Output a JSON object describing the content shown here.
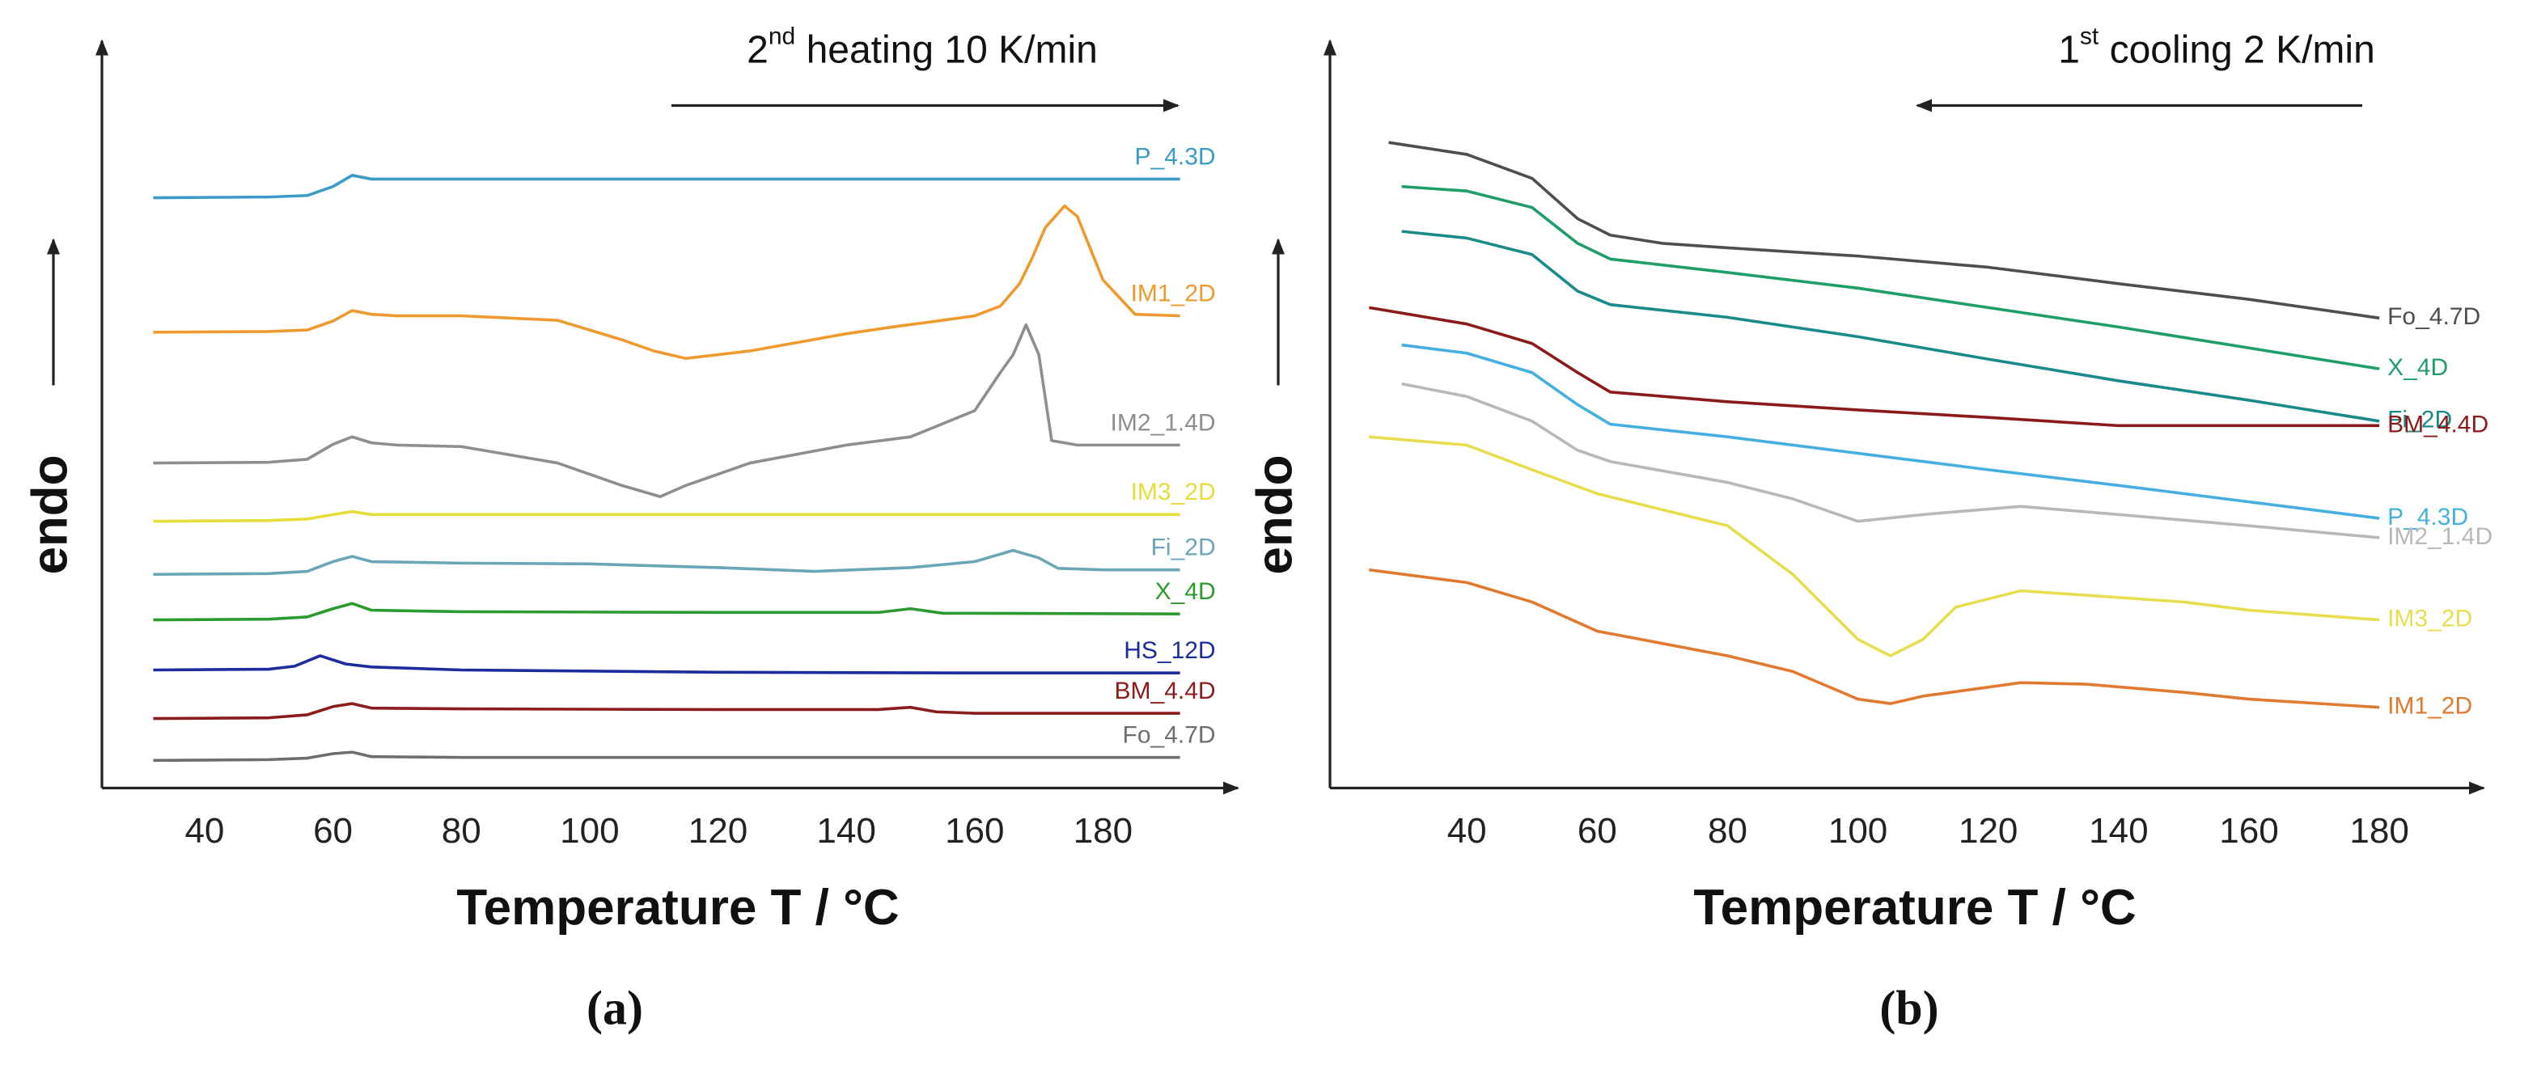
{
  "chart_data": [
    {
      "type": "line",
      "panel_label": "(a)",
      "annotation": {
        "base": "2",
        "sup": "nd",
        "rest": " heating 10 K/min"
      },
      "direction": "right",
      "xlabel": "Temperature T / °C",
      "ylabel": "endo",
      "labels": "above",
      "xlim": [
        24,
        201
      ],
      "xticks": [
        40,
        60,
        80,
        100,
        120,
        140,
        160,
        180
      ],
      "ylim": [
        0,
        100
      ],
      "series": [
        {
          "name": "P_4.3D",
          "color": "#3a9cc6",
          "x": [
            32,
            50,
            56,
            60,
            63,
            66,
            80,
            120,
            160,
            192
          ],
          "values": [
            79,
            79.1,
            79.3,
            80.5,
            82,
            81.5,
            81.5,
            81.5,
            81.5,
            81.5
          ]
        },
        {
          "name": "IM1_2D",
          "color": "#ee9a2e",
          "x": [
            32,
            50,
            56,
            60,
            63,
            66,
            70,
            80,
            95,
            105,
            110,
            115,
            125,
            140,
            148,
            155,
            160,
            164,
            167,
            169,
            171,
            174,
            176,
            180,
            185,
            192
          ],
          "values": [
            61,
            61.1,
            61.3,
            62.5,
            63.9,
            63.4,
            63.2,
            63.2,
            62.6,
            60,
            58.5,
            57.5,
            58.5,
            60.8,
            61.8,
            62.6,
            63.2,
            64.5,
            67.5,
            71,
            75,
            77.9,
            76.5,
            68,
            63.4,
            63.2
          ]
        },
        {
          "name": "IM2_1.4D",
          "color": "#8e8e8e",
          "x": [
            32,
            50,
            56,
            60,
            63,
            66,
            70,
            80,
            95,
            105,
            111,
            115,
            125,
            140,
            150,
            160,
            164,
            166,
            168,
            170,
            172,
            176,
            185,
            192
          ],
          "values": [
            43.5,
            43.6,
            44,
            46,
            47,
            46.2,
            45.9,
            45.7,
            43.5,
            40.5,
            39,
            40.5,
            43.5,
            45.9,
            47,
            50.5,
            55.6,
            58,
            62,
            58,
            46.5,
            45.9,
            45.9,
            45.9
          ]
        },
        {
          "name": "IM3_2D",
          "color": "#e6dc3a",
          "x": [
            32,
            50,
            56,
            60,
            63,
            66,
            80,
            120,
            160,
            192
          ],
          "values": [
            35.7,
            35.8,
            36,
            36.6,
            37,
            36.6,
            36.6,
            36.6,
            36.6,
            36.6
          ]
        },
        {
          "name": "Fi_2D",
          "color": "#6aa6b6",
          "x": [
            32,
            50,
            56,
            60,
            63,
            66,
            80,
            100,
            120,
            135,
            150,
            160,
            166,
            170,
            173,
            180,
            192
          ],
          "values": [
            28.6,
            28.7,
            29,
            30.3,
            31,
            30.3,
            30.1,
            30,
            29.5,
            29,
            29.5,
            30.3,
            31.8,
            30.8,
            29.4,
            29.2,
            29.2
          ]
        },
        {
          "name": "X_4D",
          "color": "#2b9a2f",
          "x": [
            32,
            50,
            56,
            60,
            63,
            66,
            80,
            120,
            145,
            150,
            155,
            192
          ],
          "values": [
            22.5,
            22.6,
            22.9,
            24,
            24.7,
            23.8,
            23.6,
            23.5,
            23.5,
            24,
            23.4,
            23.3
          ]
        },
        {
          "name": "HS_12D",
          "color": "#1c2c9c",
          "x": [
            32,
            50,
            54,
            58,
            62,
            66,
            80,
            120,
            160,
            192
          ],
          "values": [
            15.8,
            15.9,
            16.3,
            17.7,
            16.6,
            16.2,
            15.8,
            15.5,
            15.4,
            15.4
          ]
        },
        {
          "name": "BM_4.4D",
          "color": "#8b1c1c",
          "x": [
            32,
            50,
            56,
            60,
            63,
            66,
            80,
            120,
            145,
            150,
            154,
            160,
            192
          ],
          "values": [
            9.3,
            9.4,
            9.8,
            10.9,
            11.3,
            10.7,
            10.6,
            10.5,
            10.5,
            10.8,
            10.2,
            10,
            10
          ]
        },
        {
          "name": "Fo_4.7D",
          "color": "#6e6e6e",
          "x": [
            32,
            50,
            56,
            60,
            63,
            66,
            80,
            120,
            192
          ],
          "values": [
            3.7,
            3.8,
            4,
            4.6,
            4.8,
            4.2,
            4.1,
            4.1,
            4.1
          ]
        }
      ]
    },
    {
      "type": "line",
      "panel_label": "(b)",
      "annotation": {
        "base": "1",
        "sup": "st",
        "rest": " cooling 2 K/min"
      },
      "direction": "left",
      "xlabel": "Temperature T / °C",
      "ylabel": "endo",
      "labels": "right",
      "xlim": [
        19,
        196
      ],
      "xticks": [
        40,
        60,
        80,
        100,
        120,
        140,
        160,
        180
      ],
      "ylim": [
        0,
        100
      ],
      "series": [
        {
          "name": "Fo_4.7D",
          "color": "#4e4e4e",
          "x": [
            28,
            40,
            50,
            57,
            62,
            70,
            80,
            100,
            120,
            140,
            160,
            180
          ],
          "values": [
            86.4,
            84.8,
            81.6,
            76.2,
            74,
            72.9,
            72.3,
            71.2,
            69.7,
            67.5,
            65.4,
            62.9
          ]
        },
        {
          "name": "X_4D",
          "color": "#1f9e6a",
          "x": [
            30,
            40,
            50,
            57,
            62,
            80,
            100,
            120,
            140,
            160,
            180
          ],
          "values": [
            80.5,
            79.9,
            77.7,
            72.9,
            70.8,
            69,
            66.9,
            64.3,
            61.7,
            58.9,
            56.1
          ]
        },
        {
          "name": "Fi_2D",
          "color": "#1b8a8a",
          "x": [
            30,
            40,
            50,
            57,
            62,
            80,
            100,
            120,
            140,
            160,
            180
          ],
          "values": [
            74.5,
            73.6,
            71.4,
            66.5,
            64.7,
            63,
            60.4,
            57.4,
            54.5,
            51.9,
            49.1
          ]
        },
        {
          "name": "BM_4.4D",
          "color": "#8b1a1a",
          "x": [
            25,
            40,
            50,
            57,
            62,
            80,
            100,
            120,
            140,
            160,
            180
          ],
          "values": [
            64.3,
            62.1,
            59.5,
            55.6,
            53,
            51.7,
            50.6,
            49.6,
            48.5,
            48.5,
            48.5
          ]
        },
        {
          "name": "P_4.3D",
          "color": "#45b0e0",
          "x": [
            30,
            40,
            50,
            57,
            62,
            80,
            100,
            120,
            140,
            160,
            180
          ],
          "values": [
            59.3,
            58.2,
            55.6,
            51.3,
            48.7,
            47,
            44.8,
            42.6,
            40.5,
            38.3,
            36.1
          ]
        },
        {
          "name": "IM2_1.4D",
          "color": "#b8b8b8",
          "x": [
            30,
            40,
            50,
            57,
            62,
            80,
            90,
            100,
            110,
            125,
            140,
            160,
            180
          ],
          "values": [
            54.1,
            52.4,
            49.1,
            45.2,
            43.7,
            40.9,
            38.7,
            35.7,
            36.6,
            37.7,
            36.6,
            35.1,
            33.5
          ]
        },
        {
          "name": "IM3_2D",
          "color": "#e6de4e",
          "x": [
            25,
            40,
            50,
            60,
            80,
            90,
            100,
            105,
            110,
            115,
            125,
            135,
            150,
            160,
            180
          ],
          "values": [
            47,
            45.9,
            42.6,
            39.4,
            35.1,
            28.6,
            19.9,
            17.7,
            19.9,
            24.2,
            26.4,
            25.8,
            24.9,
            23.8,
            22.5
          ]
        },
        {
          "name": "IM1_2D",
          "color": "#e07a30",
          "x": [
            25,
            40,
            50,
            60,
            80,
            90,
            100,
            105,
            110,
            125,
            135,
            150,
            160,
            180
          ],
          "values": [
            29.2,
            27.5,
            24.9,
            21,
            17.7,
            15.6,
            11.9,
            11.3,
            12.3,
            14.1,
            13.9,
            12.8,
            11.9,
            10.8
          ]
        }
      ]
    }
  ]
}
